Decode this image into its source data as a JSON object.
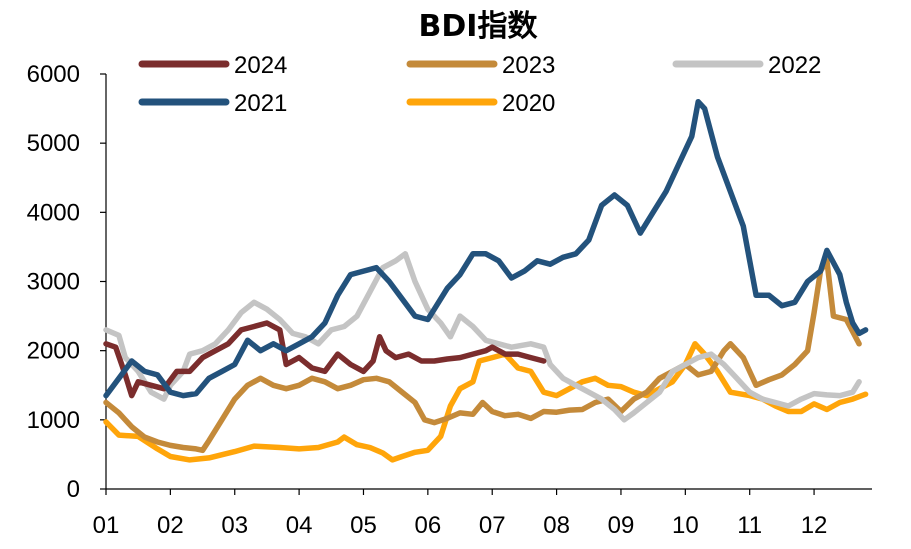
{
  "chart_data": {
    "type": "line",
    "title": "BDI指数",
    "xlabel": "",
    "ylabel": "",
    "ylim": [
      0,
      6000
    ],
    "yticks": [
      0,
      1000,
      2000,
      3000,
      4000,
      5000,
      6000
    ],
    "x_domain": [
      1,
      12.9
    ],
    "x_tick_labels": [
      "01",
      "02",
      "03",
      "04",
      "05",
      "06",
      "07",
      "08",
      "09",
      "10",
      "11",
      "12"
    ],
    "x_tick_values": [
      1,
      2,
      3,
      4,
      5,
      6,
      7,
      8,
      9,
      10,
      11,
      12
    ],
    "legend_position": "top",
    "series": [
      {
        "name": "2020",
        "color": "#FFA50A",
        "points": [
          [
            1.0,
            970
          ],
          [
            1.2,
            780
          ],
          [
            1.5,
            760
          ],
          [
            1.8,
            580
          ],
          [
            2.0,
            470
          ],
          [
            2.3,
            420
          ],
          [
            2.6,
            450
          ],
          [
            3.0,
            540
          ],
          [
            3.3,
            620
          ],
          [
            3.7,
            600
          ],
          [
            4.0,
            580
          ],
          [
            4.3,
            600
          ],
          [
            4.6,
            680
          ],
          [
            4.7,
            750
          ],
          [
            4.9,
            640
          ],
          [
            5.1,
            600
          ],
          [
            5.3,
            520
          ],
          [
            5.45,
            420
          ],
          [
            5.6,
            470
          ],
          [
            5.8,
            530
          ],
          [
            6.0,
            560
          ],
          [
            6.2,
            760
          ],
          [
            6.35,
            1200
          ],
          [
            6.5,
            1450
          ],
          [
            6.7,
            1550
          ],
          [
            6.8,
            1850
          ],
          [
            7.0,
            1900
          ],
          [
            7.2,
            1950
          ],
          [
            7.4,
            1750
          ],
          [
            7.6,
            1700
          ],
          [
            7.8,
            1400
          ],
          [
            8.0,
            1350
          ],
          [
            8.2,
            1450
          ],
          [
            8.4,
            1550
          ],
          [
            8.6,
            1600
          ],
          [
            8.8,
            1500
          ],
          [
            9.0,
            1480
          ],
          [
            9.2,
            1400
          ],
          [
            9.4,
            1350
          ],
          [
            9.6,
            1450
          ],
          [
            9.8,
            1550
          ],
          [
            10.0,
            1800
          ],
          [
            10.15,
            2100
          ],
          [
            10.3,
            1950
          ],
          [
            10.5,
            1700
          ],
          [
            10.7,
            1400
          ],
          [
            11.0,
            1350
          ],
          [
            11.2,
            1300
          ],
          [
            11.4,
            1200
          ],
          [
            11.6,
            1120
          ],
          [
            11.8,
            1120
          ],
          [
            12.0,
            1230
          ],
          [
            12.2,
            1150
          ],
          [
            12.4,
            1250
          ],
          [
            12.6,
            1300
          ],
          [
            12.8,
            1370
          ]
        ]
      },
      {
        "name": "2023",
        "color": "#C48A3A",
        "points": [
          [
            1.0,
            1250
          ],
          [
            1.2,
            1100
          ],
          [
            1.4,
            900
          ],
          [
            1.6,
            750
          ],
          [
            1.8,
            680
          ],
          [
            2.0,
            630
          ],
          [
            2.2,
            600
          ],
          [
            2.4,
            580
          ],
          [
            2.5,
            560
          ],
          [
            2.6,
            700
          ],
          [
            2.8,
            1000
          ],
          [
            3.0,
            1300
          ],
          [
            3.2,
            1500
          ],
          [
            3.4,
            1600
          ],
          [
            3.6,
            1500
          ],
          [
            3.8,
            1450
          ],
          [
            4.0,
            1500
          ],
          [
            4.2,
            1600
          ],
          [
            4.4,
            1550
          ],
          [
            4.6,
            1450
          ],
          [
            4.8,
            1500
          ],
          [
            5.0,
            1580
          ],
          [
            5.2,
            1600
          ],
          [
            5.4,
            1550
          ],
          [
            5.6,
            1400
          ],
          [
            5.8,
            1250
          ],
          [
            5.95,
            1000
          ],
          [
            6.1,
            960
          ],
          [
            6.3,
            1020
          ],
          [
            6.5,
            1100
          ],
          [
            6.7,
            1080
          ],
          [
            6.85,
            1250
          ],
          [
            7.0,
            1120
          ],
          [
            7.2,
            1060
          ],
          [
            7.4,
            1080
          ],
          [
            7.6,
            1020
          ],
          [
            7.8,
            1120
          ],
          [
            8.0,
            1110
          ],
          [
            8.2,
            1140
          ],
          [
            8.4,
            1150
          ],
          [
            8.6,
            1250
          ],
          [
            8.8,
            1300
          ],
          [
            9.0,
            1120
          ],
          [
            9.2,
            1300
          ],
          [
            9.4,
            1400
          ],
          [
            9.6,
            1600
          ],
          [
            9.8,
            1700
          ],
          [
            10.0,
            1800
          ],
          [
            10.2,
            1650
          ],
          [
            10.4,
            1700
          ],
          [
            10.6,
            2000
          ],
          [
            10.7,
            2100
          ],
          [
            10.9,
            1900
          ],
          [
            11.1,
            1500
          ],
          [
            11.3,
            1580
          ],
          [
            11.5,
            1650
          ],
          [
            11.7,
            1800
          ],
          [
            11.9,
            2000
          ],
          [
            12.0,
            2550
          ],
          [
            12.1,
            3150
          ],
          [
            12.2,
            3300
          ],
          [
            12.3,
            2500
          ],
          [
            12.5,
            2450
          ],
          [
            12.7,
            2100
          ]
        ]
      },
      {
        "name": "2022",
        "color": "#C4C4C4",
        "points": [
          [
            1.0,
            2300
          ],
          [
            1.2,
            2220
          ],
          [
            1.3,
            1900
          ],
          [
            1.5,
            1700
          ],
          [
            1.7,
            1400
          ],
          [
            1.9,
            1300
          ],
          [
            2.0,
            1500
          ],
          [
            2.2,
            1700
          ],
          [
            2.3,
            1950
          ],
          [
            2.5,
            2000
          ],
          [
            2.7,
            2100
          ],
          [
            2.9,
            2300
          ],
          [
            3.1,
            2550
          ],
          [
            3.3,
            2700
          ],
          [
            3.5,
            2600
          ],
          [
            3.7,
            2450
          ],
          [
            3.9,
            2250
          ],
          [
            4.1,
            2200
          ],
          [
            4.3,
            2100
          ],
          [
            4.5,
            2300
          ],
          [
            4.7,
            2350
          ],
          [
            4.9,
            2500
          ],
          [
            5.1,
            2850
          ],
          [
            5.3,
            3200
          ],
          [
            5.5,
            3300
          ],
          [
            5.65,
            3400
          ],
          [
            5.8,
            3000
          ],
          [
            6.0,
            2600
          ],
          [
            6.2,
            2400
          ],
          [
            6.35,
            2200
          ],
          [
            6.5,
            2500
          ],
          [
            6.7,
            2350
          ],
          [
            6.9,
            2150
          ],
          [
            7.1,
            2100
          ],
          [
            7.3,
            2050
          ],
          [
            7.6,
            2100
          ],
          [
            7.8,
            2050
          ],
          [
            7.9,
            1800
          ],
          [
            8.1,
            1600
          ],
          [
            8.3,
            1500
          ],
          [
            8.5,
            1400
          ],
          [
            8.7,
            1300
          ],
          [
            8.9,
            1150
          ],
          [
            9.05,
            1000
          ],
          [
            9.2,
            1100
          ],
          [
            9.4,
            1250
          ],
          [
            9.6,
            1400
          ],
          [
            9.8,
            1700
          ],
          [
            10.0,
            1800
          ],
          [
            10.2,
            1900
          ],
          [
            10.4,
            1950
          ],
          [
            10.6,
            1800
          ],
          [
            10.8,
            1600
          ],
          [
            11.0,
            1400
          ],
          [
            11.2,
            1300
          ],
          [
            11.4,
            1250
          ],
          [
            11.6,
            1200
          ],
          [
            11.8,
            1300
          ],
          [
            12.0,
            1380
          ],
          [
            12.2,
            1360
          ],
          [
            12.4,
            1350
          ],
          [
            12.6,
            1400
          ],
          [
            12.7,
            1550
          ]
        ]
      },
      {
        "name": "2024",
        "color": "#7B2D2D",
        "points": [
          [
            1.0,
            2100
          ],
          [
            1.15,
            2050
          ],
          [
            1.3,
            1650
          ],
          [
            1.4,
            1350
          ],
          [
            1.5,
            1550
          ],
          [
            1.7,
            1500
          ],
          [
            1.9,
            1450
          ],
          [
            2.1,
            1700
          ],
          [
            2.3,
            1700
          ],
          [
            2.5,
            1900
          ],
          [
            2.7,
            2000
          ],
          [
            2.9,
            2100
          ],
          [
            3.1,
            2300
          ],
          [
            3.3,
            2350
          ],
          [
            3.5,
            2400
          ],
          [
            3.7,
            2300
          ],
          [
            3.8,
            1800
          ],
          [
            4.0,
            1900
          ],
          [
            4.2,
            1750
          ],
          [
            4.4,
            1700
          ],
          [
            4.6,
            1950
          ],
          [
            4.8,
            1800
          ],
          [
            5.0,
            1700
          ],
          [
            5.15,
            1850
          ],
          [
            5.25,
            2200
          ],
          [
            5.35,
            2000
          ],
          [
            5.5,
            1900
          ],
          [
            5.7,
            1950
          ],
          [
            5.9,
            1850
          ],
          [
            6.1,
            1850
          ],
          [
            6.3,
            1880
          ],
          [
            6.5,
            1900
          ],
          [
            6.7,
            1950
          ],
          [
            6.9,
            2000
          ],
          [
            7.0,
            2050
          ],
          [
            7.2,
            1950
          ],
          [
            7.4,
            1950
          ],
          [
            7.6,
            1900
          ],
          [
            7.8,
            1850
          ]
        ]
      },
      {
        "name": "2021",
        "color": "#23527C",
        "points": [
          [
            1.0,
            1350
          ],
          [
            1.2,
            1600
          ],
          [
            1.4,
            1850
          ],
          [
            1.6,
            1700
          ],
          [
            1.8,
            1650
          ],
          [
            2.0,
            1400
          ],
          [
            2.2,
            1350
          ],
          [
            2.4,
            1380
          ],
          [
            2.6,
            1600
          ],
          [
            2.8,
            1700
          ],
          [
            3.0,
            1800
          ],
          [
            3.2,
            2150
          ],
          [
            3.4,
            2000
          ],
          [
            3.6,
            2100
          ],
          [
            3.8,
            2000
          ],
          [
            4.0,
            2100
          ],
          [
            4.2,
            2200
          ],
          [
            4.4,
            2400
          ],
          [
            4.6,
            2800
          ],
          [
            4.8,
            3100
          ],
          [
            5.0,
            3150
          ],
          [
            5.2,
            3200
          ],
          [
            5.4,
            3000
          ],
          [
            5.6,
            2750
          ],
          [
            5.8,
            2500
          ],
          [
            6.0,
            2450
          ],
          [
            6.1,
            2600
          ],
          [
            6.3,
            2900
          ],
          [
            6.5,
            3100
          ],
          [
            6.7,
            3400
          ],
          [
            6.9,
            3400
          ],
          [
            7.1,
            3300
          ],
          [
            7.3,
            3050
          ],
          [
            7.5,
            3150
          ],
          [
            7.7,
            3300
          ],
          [
            7.9,
            3250
          ],
          [
            8.1,
            3350
          ],
          [
            8.3,
            3400
          ],
          [
            8.5,
            3600
          ],
          [
            8.7,
            4100
          ],
          [
            8.9,
            4250
          ],
          [
            9.1,
            4100
          ],
          [
            9.3,
            3700
          ],
          [
            9.5,
            4000
          ],
          [
            9.7,
            4300
          ],
          [
            9.9,
            4700
          ],
          [
            10.1,
            5100
          ],
          [
            10.2,
            5600
          ],
          [
            10.3,
            5500
          ],
          [
            10.5,
            4800
          ],
          [
            10.7,
            4300
          ],
          [
            10.9,
            3800
          ],
          [
            11.0,
            3300
          ],
          [
            11.1,
            2800
          ],
          [
            11.3,
            2800
          ],
          [
            11.5,
            2650
          ],
          [
            11.7,
            2700
          ],
          [
            11.9,
            3000
          ],
          [
            12.1,
            3150
          ],
          [
            12.2,
            3450
          ],
          [
            12.4,
            3100
          ],
          [
            12.5,
            2700
          ],
          [
            12.6,
            2400
          ],
          [
            12.7,
            2250
          ],
          [
            12.8,
            2300
          ]
        ]
      }
    ],
    "legend": [
      {
        "series": "2024",
        "row": 0,
        "col": 0
      },
      {
        "series": "2023",
        "row": 0,
        "col": 1
      },
      {
        "series": "2022",
        "row": 0,
        "col": 2
      },
      {
        "series": "2021",
        "row": 1,
        "col": 0
      },
      {
        "series": "2020",
        "row": 1,
        "col": 1
      }
    ]
  }
}
